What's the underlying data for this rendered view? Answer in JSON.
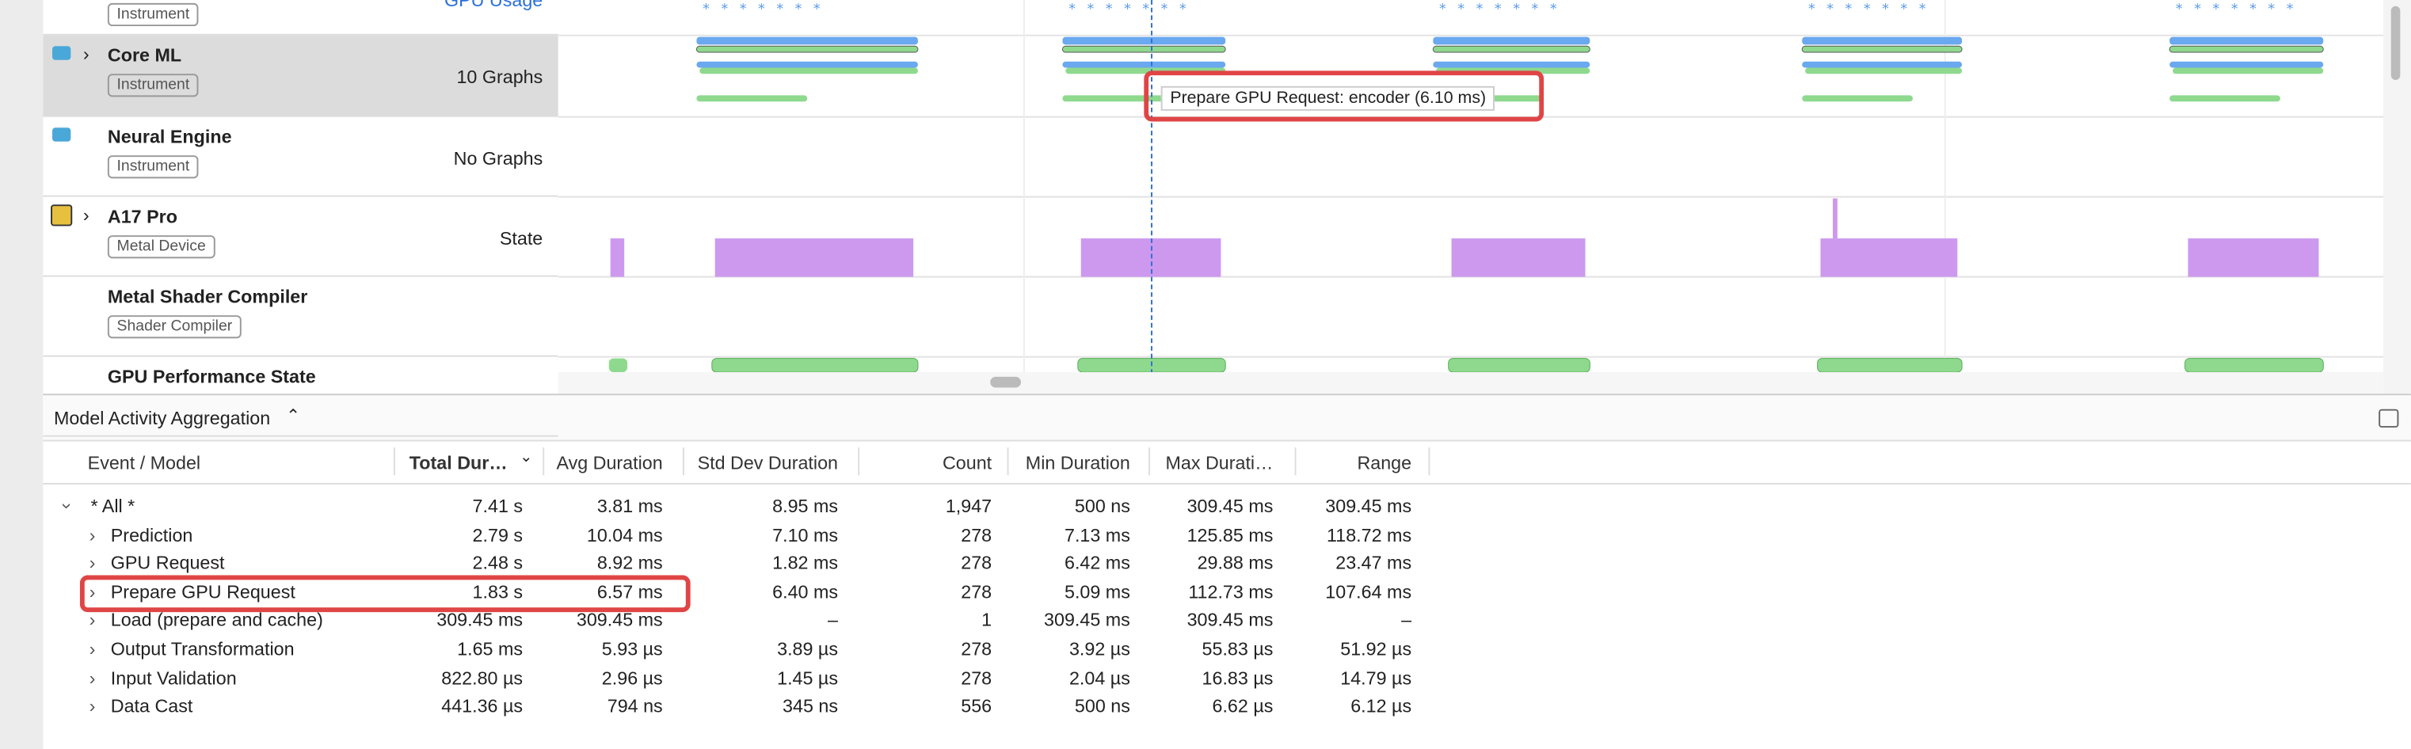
{
  "tracks": [
    {
      "badge": "Instrument",
      "detail": "GPU Usage"
    },
    {
      "name": "Core ML",
      "badge": "Instrument",
      "detail": "10 Graphs"
    },
    {
      "name": "Neural Engine",
      "badge": "Instrument",
      "detail": "No Graphs"
    },
    {
      "name": "A17 Pro",
      "badge": "Metal Device",
      "detail": "State"
    },
    {
      "name": "Metal Shader Compiler",
      "badge": "Shader Compiler"
    },
    {
      "name": "GPU Performance State"
    }
  ],
  "tooltip": "Prepare GPU Request: encoder (6.10 ms)",
  "panel": {
    "title": "Model Activity Aggregation"
  },
  "table": {
    "columns": [
      "Event / Model",
      "Total Dur…",
      "Avg Duration",
      "Std Dev Duration",
      "Count",
      "Min Duration",
      "Max Durati…",
      "Range"
    ],
    "rows": [
      [
        "* All *",
        "7.41 s",
        "3.81 ms",
        "8.95 ms",
        "1,947",
        "500 ns",
        "309.45 ms",
        "309.45 ms"
      ],
      [
        "Prediction",
        "2.79 s",
        "10.04 ms",
        "7.10 ms",
        "278",
        "7.13 ms",
        "125.85 ms",
        "118.72 ms"
      ],
      [
        "GPU Request",
        "2.48 s",
        "8.92 ms",
        "1.82 ms",
        "278",
        "6.42 ms",
        "29.88 ms",
        "23.47 ms"
      ],
      [
        "Prepare GPU Request",
        "1.83 s",
        "6.57 ms",
        "6.40 ms",
        "278",
        "5.09 ms",
        "112.73 ms",
        "107.64 ms"
      ],
      [
        "Load (prepare and cache)",
        "309.45 ms",
        "309.45 ms",
        "–",
        "1",
        "309.45 ms",
        "309.45 ms",
        "–"
      ],
      [
        "Output Transformation",
        "1.65 ms",
        "5.93 µs",
        "3.89 µs",
        "278",
        "3.92 µs",
        "55.83 µs",
        "51.92 µs"
      ],
      [
        "Input Validation",
        "822.80 µs",
        "2.96 µs",
        "1.45 µs",
        "278",
        "2.04 µs",
        "16.83 µs",
        "14.79 µs"
      ],
      [
        "Data Cast",
        "441.36 µs",
        "794 ns",
        "345 ns",
        "556",
        "500 ns",
        "6.62 µs",
        "6.12 µs"
      ]
    ]
  }
}
